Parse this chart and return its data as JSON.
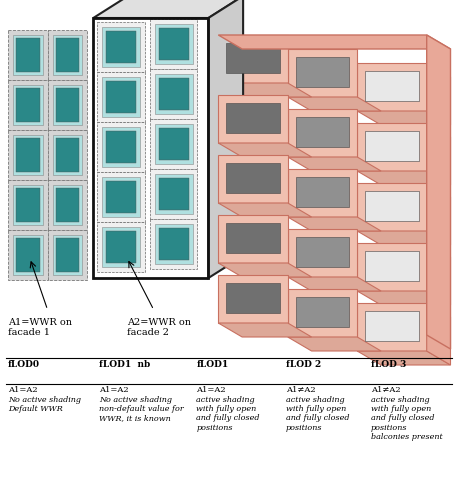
{
  "background_color": "#ffffff",
  "facade1_face_color": "#d8d8d8",
  "facade1_edge_color": "#666666",
  "facade2_face_color": "#f2f2f2",
  "facade2_edge_color": "#333333",
  "pink_face_color": "#f0c0b0",
  "pink_edge_color": "#c87060",
  "pink_side_color": "#e8a898",
  "pink_bottom_color": "#dda898",
  "teal_color": "#2a9090",
  "cyan_frame_color": "#b0e0e0",
  "table_headers": [
    "fLOD0",
    "fLOD1  nb",
    "fLOD1",
    "fLOD 2",
    "fLOD 3"
  ],
  "table_row1": [
    "A1=A2",
    "A1=A2",
    "A1=A2",
    "A1≠A2",
    "A1≠A2"
  ],
  "table_row2_italic": [
    "No active shading\nDefault WWR",
    "No active shading\nnon-default value for\nWWR, it is known",
    "active shading\nwith fully open\nand fully closed\npositions",
    "active shading\nwith fully open\nand fully closed\npositions",
    "active shading\nwith fully open\nand fully closed\npositions\nbalconies present"
  ]
}
